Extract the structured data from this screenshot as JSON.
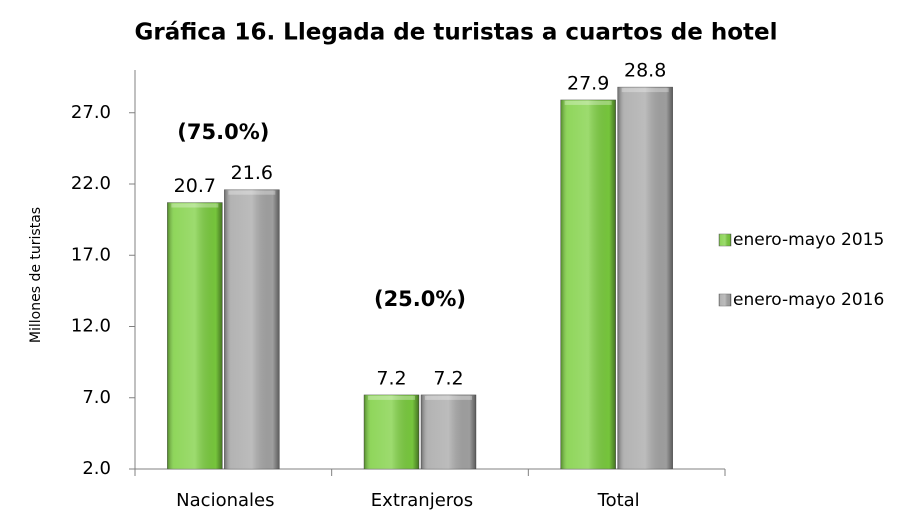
{
  "chart_data": {
    "type": "bar",
    "title": "Gráfica 16. Llegada de turistas a cuartos de hotel",
    "y_axis_label": "Millones  de turistas",
    "categories": [
      "Nacionales",
      "Extranjeros",
      "Total"
    ],
    "series": [
      {
        "name": "enero-mayo 2015",
        "color": "#7ccf3f",
        "values": [
          20.7,
          7.2,
          27.9
        ]
      },
      {
        "name": "enero-mayo 2016",
        "color": "#a6a6a6",
        "values": [
          21.6,
          7.2,
          28.8
        ]
      }
    ],
    "annotations": [
      "(75.0%)",
      "(25.0%)"
    ],
    "ylim": [
      2,
      30
    ],
    "yticks": [
      {
        "value": 2,
        "label": "2.0"
      },
      {
        "value": 7,
        "label": "7.0"
      },
      {
        "value": 12,
        "label": "12.0"
      },
      {
        "value": 17,
        "label": "17.0"
      },
      {
        "value": 22,
        "label": "22.0"
      },
      {
        "value": 27,
        "label": "27.0"
      }
    ],
    "legend": "right"
  }
}
